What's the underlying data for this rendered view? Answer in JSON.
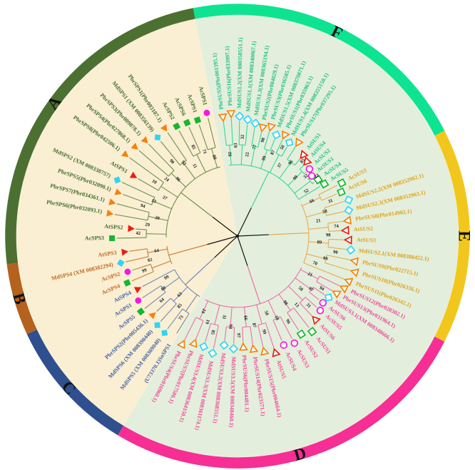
{
  "figure": {
    "kind": "circular-phylogenetic-tree",
    "sps_background_color": "#FAEFD2",
    "sus_background_color": "#E3EFDC",
    "sps_wedge_angles": [
      211,
      349
    ],
    "bootstrap_color": "#1a1a1a",
    "letter_color": "#111111"
  },
  "markers": {
    "pbr": {
      "shape": "triangle",
      "color": "#F5820A",
      "name": "orange-triangle-icon"
    },
    "md": {
      "shape": "diamond",
      "color": "#2FD5F5",
      "name": "cyan-diamond-icon"
    },
    "at": {
      "shape": "triangle",
      "color": "#EE1C0F",
      "name": "red-triangle-icon"
    },
    "acs": {
      "shape": "square",
      "color": "#14B72F",
      "name": "green-square-icon"
    },
    "acc": {
      "shape": "circle",
      "color": "#F716E0",
      "name": "magenta-circle-icon"
    }
  },
  "clades": [
    {
      "id": "A",
      "letter": "A",
      "letter_angle": 306,
      "arc": [
        263,
        349
      ],
      "arc_color": "#4C7031",
      "branch_color": "#6F8F4F",
      "label_color": "#3F6B2E",
      "open_markers": false,
      "bootstrap": [
        88,
        71,
        85,
        11,
        92,
        90,
        96,
        24,
        10,
        37,
        13,
        94,
        20,
        29,
        42
      ],
      "leaves": [
        [
          "AcSPS1",
          "acc",
          346,
          178
        ],
        [
          "AcSPS1",
          "acs",
          341,
          172
        ],
        [
          "AcSPS6",
          "acs",
          336,
          174
        ],
        [
          "AcSPS2",
          "acs",
          331,
          176
        ],
        [
          "PbrSPS1(Pbr003107.1)",
          "pbr",
          326,
          182
        ],
        [
          "MdSPS1 (XM 008356139)",
          "md",
          321,
          178
        ],
        [
          "PbrSPS3(Pbr009878.1)",
          "pbr",
          316,
          186
        ],
        [
          "PbrSPS4(Pbr027868.1)",
          "pbr",
          311,
          190
        ],
        [
          "PbrSPS8(Pbr042506.1)",
          "pbr",
          306,
          194
        ],
        [
          "AtSPS1",
          "at",
          300,
          168
        ],
        [
          "MdSPS2 (XM 008338757)",
          "md",
          295,
          186
        ],
        [
          "PbrSPS5(Pbr032090.1)",
          "pbr",
          290,
          178
        ],
        [
          "PbrSPS7(Pbr034361.1)",
          "pbr",
          285,
          182
        ],
        [
          "PbrSPS6(Pbr032093.1)",
          "pbr",
          280,
          182
        ],
        [
          "AtSPS2",
          "at",
          274,
          150
        ],
        [
          "AcSPS3",
          "acs",
          269,
          176
        ]
      ]
    },
    {
      "id": "B",
      "letter": "B",
      "letter_angle": 254,
      "arc": [
        245,
        263
      ],
      "arc_color": "#B4621E",
      "branch_color": "#C8803C",
      "label_color": "#C06820",
      "open_markers": false,
      "bootstrap": [
        64,
        82,
        99
      ],
      "leaves": [
        [
          "AtSPS3",
          "at",
          262,
          160
        ],
        [
          "MdSPS4 (XM 008382294)",
          "md",
          257,
          168
        ],
        [
          "AcSPS2",
          "acc",
          252,
          162
        ],
        [
          "AcSPS4",
          "acs",
          247,
          168
        ]
      ]
    },
    {
      "id": "C",
      "letter": "C",
      "letter_angle": 228,
      "arc": [
        211,
        245
      ],
      "arc_color": "#2F4F8F",
      "branch_color": "#7187B8",
      "label_color": "#3E5FA5",
      "open_markers": false,
      "bootstrap": [
        99,
        88,
        64,
        63,
        85,
        73
      ],
      "leaves": [
        [
          "AtSPS4",
          "at",
          242,
          158
        ],
        [
          "AcSPS1",
          "acc",
          237,
          166
        ],
        [
          "AcSPS5",
          "acs",
          232,
          172
        ],
        [
          "PbrSPS2(Pbr005436.1)",
          "pbr",
          227,
          162
        ],
        [
          "MdSPS6 (XM 008390440)",
          "md",
          222,
          168
        ],
        [
          "MdSPS5 (XM 008369040)",
          "md",
          217,
          170
        ],
        [
          "(U73370.1)SoSPS1",
          null,
          212,
          168
        ]
      ]
    },
    {
      "id": "D",
      "letter": "D",
      "letter_angle": 164,
      "arc": [
        117,
        211
      ],
      "arc_color": "#F72E93",
      "branch_color": "#F06CAD",
      "label_color": "#F2479B",
      "open_markers": true,
      "bootstrap": [
        24,
        19,
        85,
        11,
        94,
        97,
        66,
        87,
        99,
        50,
        18,
        96,
        98,
        13,
        31,
        58,
        97,
        94,
        21
      ],
      "leaves": [
        [
          "PbrSUS4(Pbr016960.1)",
          "pbr",
          207,
          170
        ],
        [
          "PbrSUS7(Pbr017506.1)",
          "pbr",
          202,
          162
        ],
        [
          "MdSUS3.4(XM 008364150.1)",
          "md",
          197,
          162
        ],
        [
          "MdSUS3.3(XM 008361174.1)",
          "md",
          192,
          168
        ],
        [
          "MdSUS3.2(XM 008368551.1)",
          "md",
          187,
          154
        ],
        [
          "MdSUS3.5(XM 008348460.1)",
          "md",
          182,
          158
        ],
        [
          "PbrSUS6(Pbr004481.1)",
          "pbr",
          177,
          156
        ],
        [
          "PbrSUS14(Pbr023571.1)",
          "pbr",
          172,
          160
        ],
        [
          "PbrSUS15(Pbr004664.1)",
          "pbr",
          167,
          166
        ],
        [
          "AtSUS5",
          "at",
          162,
          172
        ],
        [
          "AcSUS4",
          "acc",
          157,
          166
        ],
        [
          "AcSUS3",
          "acc",
          152,
          170
        ],
        [
          "AcSUS2",
          "acs",
          147,
          164
        ],
        [
          "AcSUS1",
          "acs",
          142,
          170
        ],
        [
          "AtSUS6",
          "at",
          137,
          160
        ],
        [
          "AcSUS5",
          "acc",
          132,
          156
        ],
        [
          "AcSUS6",
          "acc",
          128,
          152
        ],
        [
          "MdSUS3.1(XM 008348666.1)",
          "md",
          124,
          154
        ],
        [
          "PbrSUS13(Pbr031964.1)",
          "pbr",
          120,
          160
        ],
        [
          "PbrSUS12(Pbr028302.1)",
          "pbr",
          116,
          166
        ]
      ]
    },
    {
      "id": "E",
      "letter": "E",
      "letter_angle": 90,
      "arc": [
        63,
        117
      ],
      "arc_color": "#F2C71D",
      "branch_color": "#EAAA4E",
      "label_color": "#DFA019",
      "open_markers": true,
      "bootstrap": [
        70,
        99,
        90,
        89,
        98,
        74,
        21,
        58,
        31,
        66
      ],
      "leaves": [
        [
          "PbrSUS11(Pbr026342.1)",
          "pbr",
          112,
          168
        ],
        [
          "PbrSUS10(Pbr026336.1)",
          "pbr",
          107,
          172
        ],
        [
          "PbrSUS9(Pbr022715.1)",
          "pbr",
          102,
          168
        ],
        [
          "MdSUS2.1(XM 008388452.1)",
          "md",
          97,
          160
        ],
        [
          "AtSUS3",
          "at",
          92,
          156
        ],
        [
          "AtSUS2",
          "at",
          87,
          152
        ],
        [
          "PbrSUS8(Pbr014902.1)",
          "pbr",
          82,
          156
        ],
        [
          "MdSUS2.3(XM 008352963.1)",
          "md",
          77,
          160
        ],
        [
          "MdSUS2.2(XM 008352962.1)",
          "md",
          72,
          164
        ],
        [
          "AcSUS6",
          "acs",
          67,
          158
        ],
        [
          "AcSUS3",
          "acs",
          63,
          164
        ]
      ]
    },
    {
      "id": "F",
      "letter": "F",
      "letter_angle": 386,
      "arc": [
        349,
        423
      ],
      "arc_color": "#0EE392",
      "branch_color": "#3BD598",
      "label_color": "#1FBF85",
      "open_markers": true,
      "bootstrap": [
        92,
        63,
        32,
        22,
        77,
        98,
        99,
        87,
        50,
        37,
        96,
        85,
        99,
        32,
        22,
        52
      ],
      "leaves": [
        [
          "PbrSUS5(Pbr001395.1)",
          "pbr",
          353,
          168
        ],
        [
          "PbrSUS16(Pbr033997.1)",
          "pbr",
          357,
          172
        ],
        [
          "MdSUS1.2(XM 008358551.1)",
          "md",
          361,
          168
        ],
        [
          "MdSUS1.1(XM 008340067.1)",
          "md",
          365,
          164
        ],
        [
          "MdSUS1.3(XM 008365194.1)",
          "md",
          369,
          160
        ],
        [
          "PbrSUS2(Pbr004029.1)",
          "pbr",
          373,
          156
        ],
        [
          "PbrSUS3(Pbr036585.1)",
          "pbr",
          377,
          160
        ],
        [
          "MdSUS1.5(XM 008370871.1)",
          "md",
          381,
          152
        ],
        [
          "PbrSUS1(Pbr035963.1)",
          "pbr",
          385,
          156
        ],
        [
          "MdSUS1.4(XM 008355150.1)",
          "md",
          389,
          150
        ],
        [
          "PbrSUS17(Pbr037295.1)",
          "pbr",
          393,
          156
        ],
        [
          "AtSUS1",
          "at",
          399,
          146
        ],
        [
          "AtSUS4",
          "at",
          403,
          142
        ],
        [
          "AcSUS2",
          "acc",
          407,
          138
        ],
        [
          "AcSUS1",
          "acc",
          411,
          134
        ],
        [
          "AcSUS4",
          "acs",
          415,
          138
        ],
        [
          "AcSUS5",
          "acs",
          419,
          142
        ]
      ]
    }
  ]
}
